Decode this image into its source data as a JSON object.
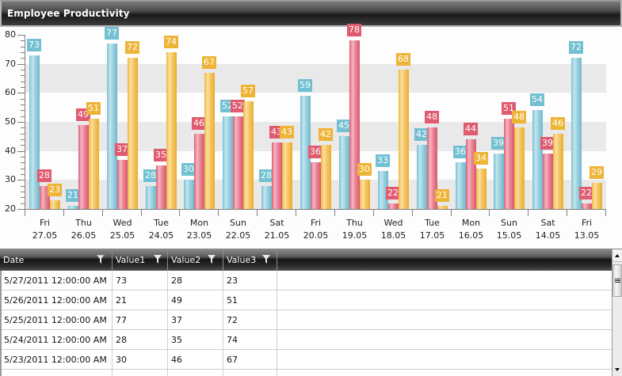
{
  "window": {
    "title": "Employee Productivity"
  },
  "chart_data": {
    "type": "bar",
    "title": "Employee Productivity",
    "xlabel": "",
    "ylabel": "",
    "ylim": [
      20,
      80
    ],
    "yticks": [
      20,
      30,
      40,
      50,
      60,
      70,
      80
    ],
    "grid": "alternating horizontal bands",
    "legend": "none",
    "data_labels": true,
    "categories": [
      {
        "day": "Fri",
        "date": "27.05"
      },
      {
        "day": "Thu",
        "date": "26.05"
      },
      {
        "day": "Wed",
        "date": "25.05"
      },
      {
        "day": "Tue",
        "date": "24.05"
      },
      {
        "day": "Mon",
        "date": "23.05"
      },
      {
        "day": "Sun",
        "date": "22.05"
      },
      {
        "day": "Sat",
        "date": "21.05"
      },
      {
        "day": "Fri",
        "date": "20.05"
      },
      {
        "day": "Thu",
        "date": "19.05"
      },
      {
        "day": "Wed",
        "date": "18.05"
      },
      {
        "day": "Tue",
        "date": "17.05"
      },
      {
        "day": "Mon",
        "date": "16.05"
      },
      {
        "day": "Sun",
        "date": "15.05"
      },
      {
        "day": "Sat",
        "date": "14.05"
      },
      {
        "day": "Fri",
        "date": "13.05"
      }
    ],
    "series": [
      {
        "name": "Value1",
        "color": "#72c0d2",
        "values": [
          73,
          21,
          77,
          28,
          30,
          52,
          28,
          59,
          45,
          33,
          42,
          36,
          39,
          54,
          72
        ]
      },
      {
        "name": "Value2",
        "color": "#e05a70",
        "values": [
          28,
          49,
          37,
          35,
          46,
          52,
          43,
          36,
          78,
          22,
          48,
          44,
          51,
          39,
          22
        ]
      },
      {
        "name": "Value3",
        "color": "#eeb437",
        "values": [
          23,
          51,
          72,
          74,
          67,
          57,
          43,
          42,
          30,
          68,
          21,
          34,
          48,
          46,
          29
        ]
      }
    ]
  },
  "grid": {
    "columns": [
      {
        "label": "Date",
        "icon": "filter-icon"
      },
      {
        "label": "Value1",
        "icon": "filter-icon"
      },
      {
        "label": "Value2",
        "icon": "filter-icon"
      },
      {
        "label": "Value3",
        "icon": "filter-icon"
      }
    ],
    "rows": [
      {
        "date": "5/27/2011 12:00:00 AM",
        "v1": "73",
        "v2": "28",
        "v3": "23"
      },
      {
        "date": "5/26/2011 12:00:00 AM",
        "v1": "21",
        "v2": "49",
        "v3": "51"
      },
      {
        "date": "5/25/2011 12:00:00 AM",
        "v1": "77",
        "v2": "37",
        "v3": "72"
      },
      {
        "date": "5/24/2011 12:00:00 AM",
        "v1": "28",
        "v2": "35",
        "v3": "74"
      },
      {
        "date": "5/23/2011 12:00:00 AM",
        "v1": "30",
        "v2": "46",
        "v3": "67"
      },
      {
        "date": "",
        "v1": "",
        "v2": "",
        "v3": ""
      }
    ]
  }
}
